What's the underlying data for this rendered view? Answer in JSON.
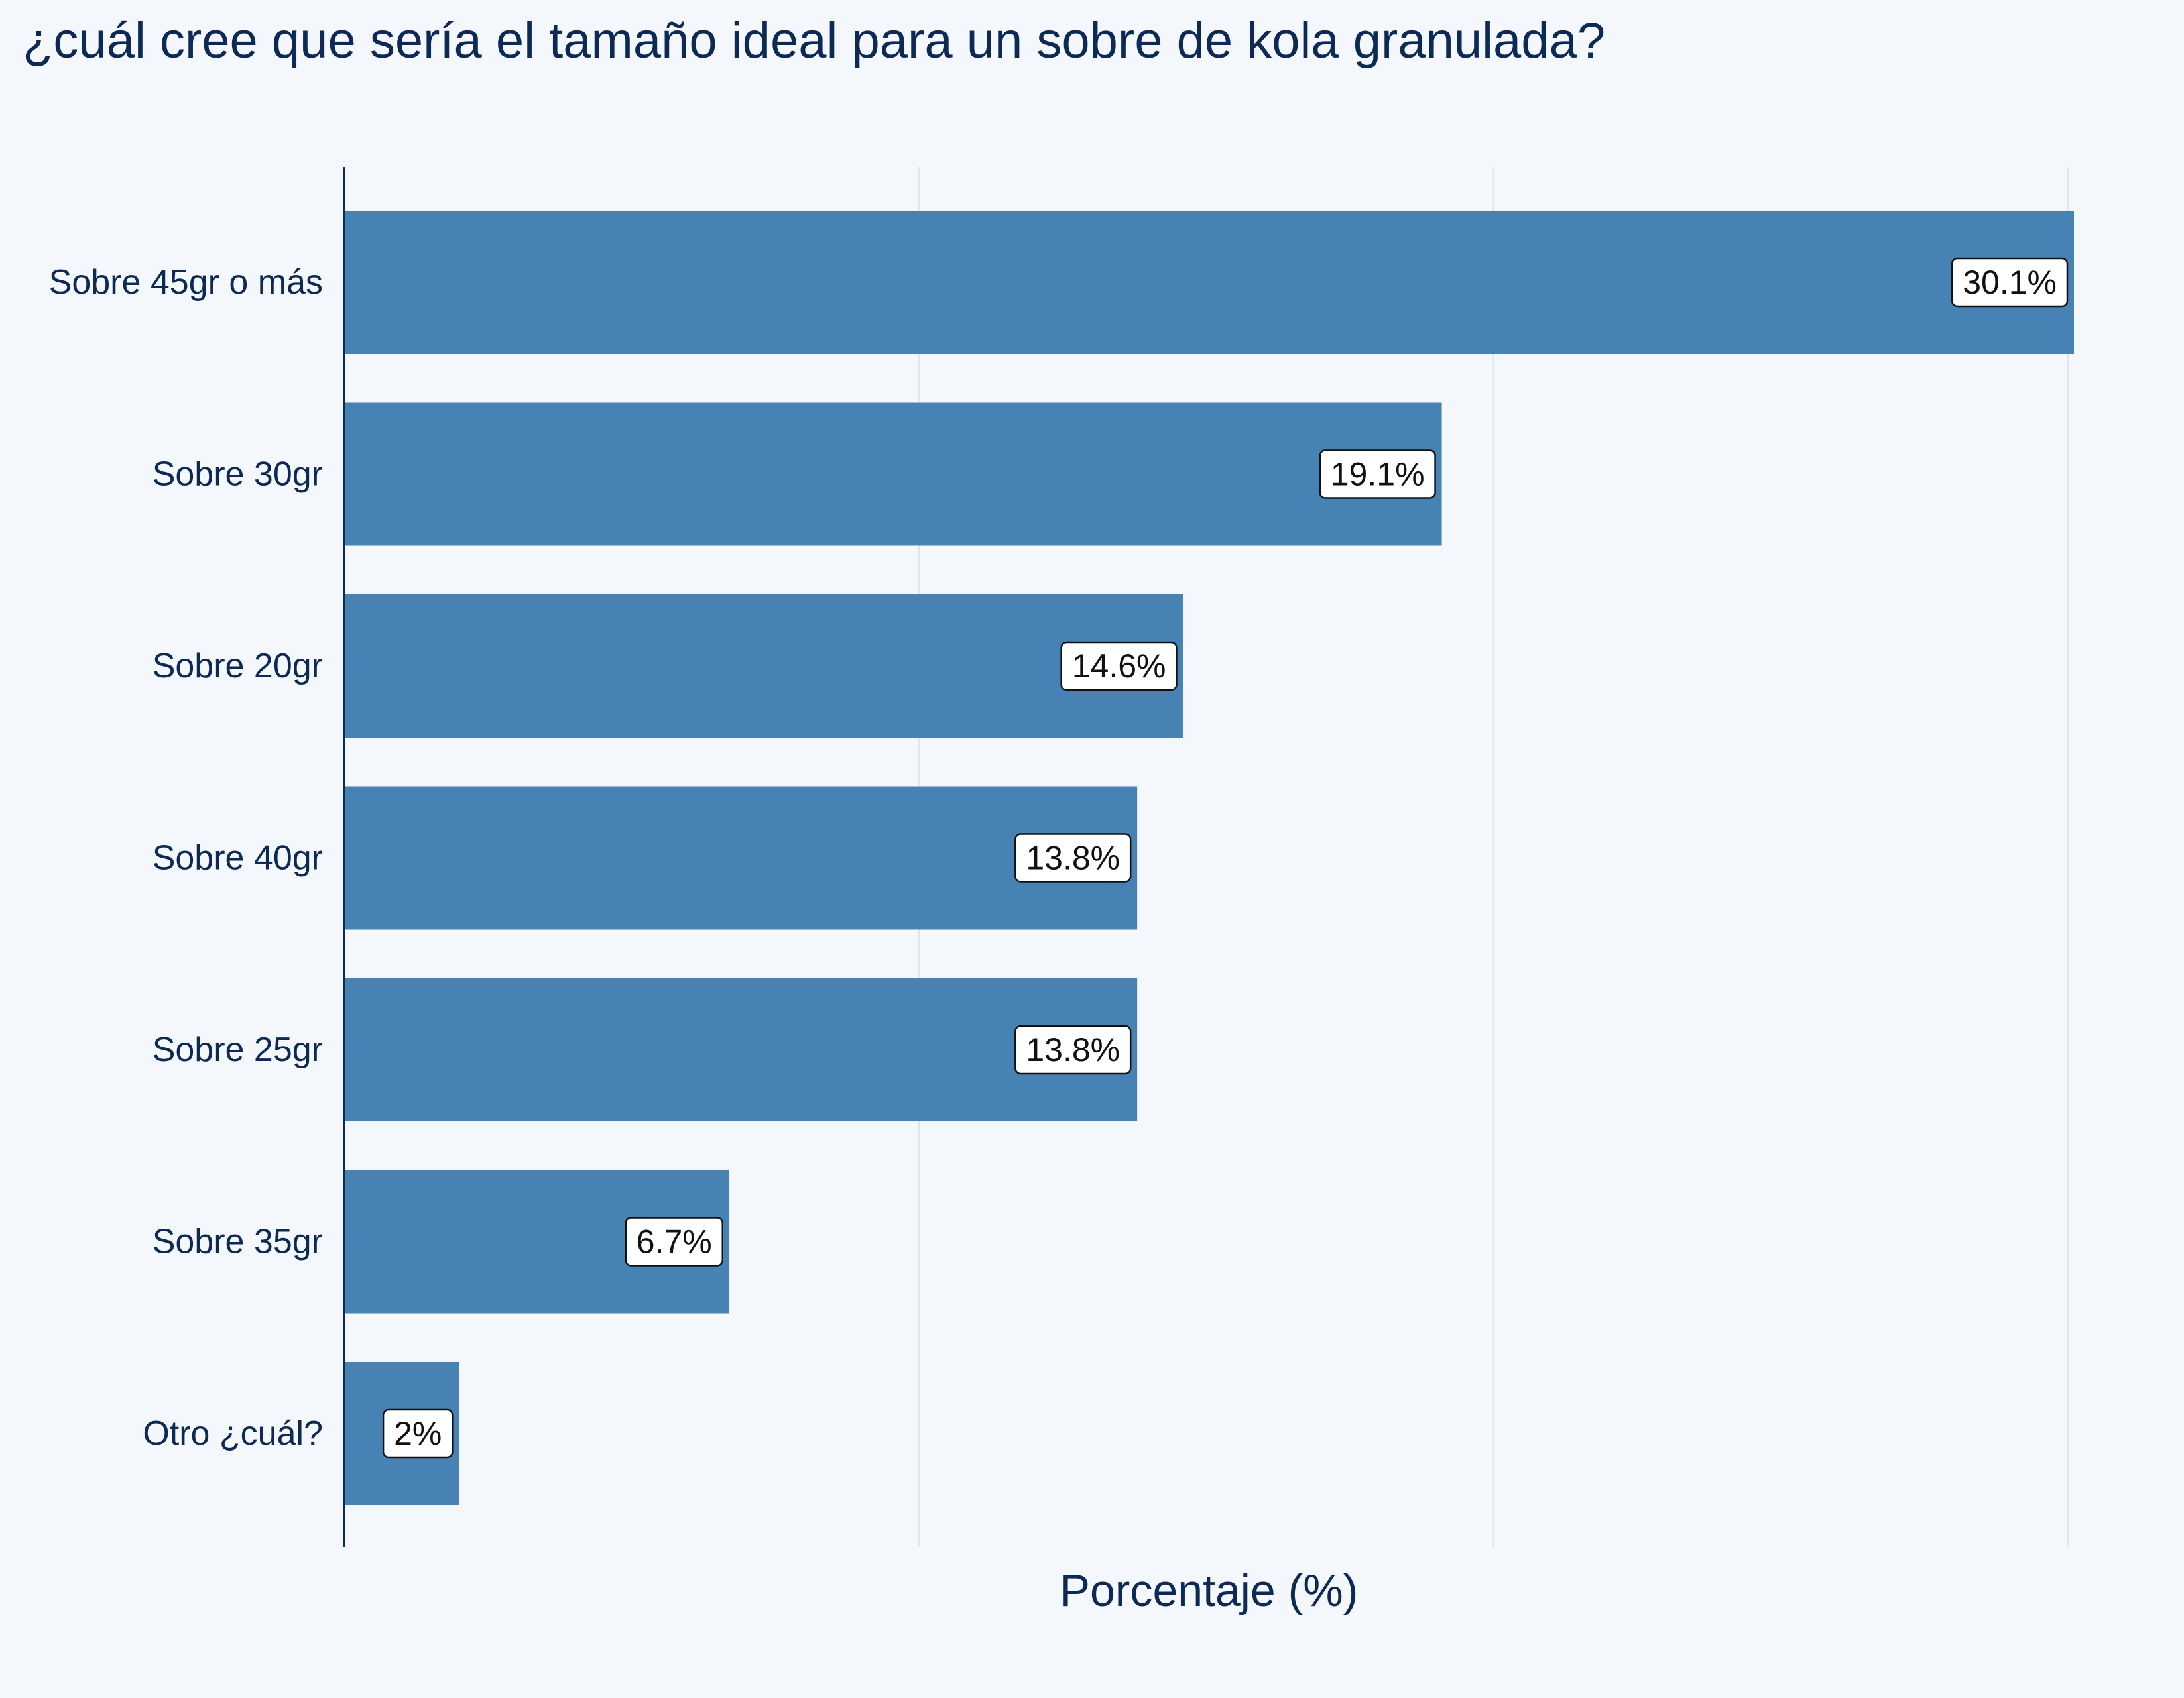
{
  "chart_data": {
    "type": "bar",
    "orientation": "horizontal",
    "title": "¿cuál cree que sería el tamaño ideal para un sobre de kola granulada?",
    "xlabel": "Porcentaje (%)",
    "ylabel": "",
    "categories": [
      "Sobre 45gr o más",
      "Sobre 30gr",
      "Sobre 20gr",
      "Sobre 40gr",
      "Sobre 25gr",
      "Sobre 35gr",
      "Otro ¿cuál?"
    ],
    "values": [
      30.1,
      19.1,
      14.6,
      13.8,
      13.8,
      6.7,
      2
    ],
    "value_labels": [
      "30.1%",
      "19.1%",
      "14.6%",
      "13.8%",
      "13.8%",
      "6.7%",
      "2%"
    ],
    "xlim": [
      0,
      30.1
    ],
    "x_gridlines": [
      0,
      10,
      20,
      30
    ],
    "x_tick_labels_shown": false,
    "grid": true,
    "legend": "none",
    "colors": {
      "background": "#f4f8fc",
      "bar": "#4682b4",
      "text": "#0d2a57",
      "grid": "#dfe3e8",
      "axis": "#0d2a57",
      "label_box_fill": "#ffffff",
      "label_box_stroke": "#111111"
    }
  }
}
